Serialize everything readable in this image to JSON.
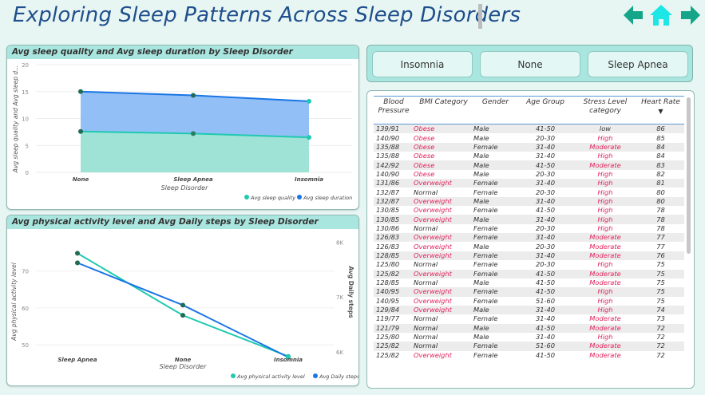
{
  "page_title": "Exploring Sleep Patterns Across Sleep Disorders",
  "nav": {
    "back_icon": "arrow-left-icon",
    "home_icon": "home-icon",
    "forward_icon": "arrow-right-icon",
    "color": "#15a68a"
  },
  "slicer": {
    "options": [
      "Insomnia",
      "None",
      "Sleep Apnea"
    ]
  },
  "chart1": {
    "title": "Avg sleep quality and Avg sleep duration by Sleep Disorder",
    "ylabel": "Avg sleep quality and Avg sleep d...",
    "xlabel": "Sleep Disorder",
    "y_ticks": [
      "0",
      "5",
      "10",
      "15",
      "20"
    ],
    "legend": [
      "Avg sleep quality",
      "Avg sleep duration"
    ]
  },
  "chart2": {
    "title": "Avg physical activity level and Avg Daily steps by Sleep Disorder",
    "ylabel": "Avg physical activity level",
    "ylabel2": "Avg Daily steps",
    "xlabel": "Sleep Disorder",
    "y_ticks": [
      "50",
      "60",
      "70"
    ],
    "y2_ticks": [
      "6K",
      "7K",
      "8K"
    ],
    "legend": [
      "Avg physical activity level",
      "Avg Daily steps"
    ]
  },
  "chart_data": [
    {
      "type": "area",
      "title": "Avg sleep quality and Avg sleep duration by Sleep Disorder",
      "categories": [
        "None",
        "Sleep Apnea",
        "Insomnia"
      ],
      "series": [
        {
          "name": "Avg sleep quality",
          "values": [
            7.6,
            7.2,
            6.5
          ],
          "color": "#20c9b0"
        },
        {
          "name": "Avg sleep duration",
          "values": [
            15.0,
            14.3,
            13.2
          ],
          "color": "#1a75e6"
        }
      ],
      "ylim": [
        0,
        20
      ],
      "xlabel": "Sleep Disorder",
      "ylabel": "Avg sleep quality and Avg sleep d...",
      "legend": "bottom-right"
    },
    {
      "type": "line",
      "title": "Avg physical activity level and Avg Daily steps by Sleep Disorder",
      "categories": [
        "Sleep Apnea",
        "None",
        "Insomnia"
      ],
      "series": [
        {
          "name": "Avg physical activity level",
          "values": [
            74.8,
            58.0,
            46.9
          ],
          "axis": "left",
          "color": "#20c9b0"
        },
        {
          "name": "Avg Daily steps",
          "values": [
            7620,
            6850,
            5900
          ],
          "axis": "right",
          "color": "#1a75e6"
        }
      ],
      "ylim": [
        44,
        82
      ],
      "y2lim": [
        5720,
        8280
      ],
      "xlabel": "Sleep Disorder",
      "ylabel": "Avg physical activity level",
      "y2label": "Avg Daily steps",
      "legend": "bottom-right"
    }
  ],
  "table": {
    "columns": [
      "Blood Pressure",
      "BMI Category",
      "Gender",
      "Age Group",
      "Stress Level category",
      "Heart Rate"
    ],
    "sort_indicator": "▼",
    "rows": [
      [
        "139/91",
        "Obese",
        "Male",
        "41-50",
        "low",
        "86"
      ],
      [
        "140/90",
        "Obese",
        "Male",
        "20-30",
        "High",
        "85"
      ],
      [
        "135/88",
        "Obese",
        "Female",
        "31-40",
        "Moderate",
        "84"
      ],
      [
        "135/88",
        "Obese",
        "Male",
        "31-40",
        "High",
        "84"
      ],
      [
        "142/92",
        "Obese",
        "Male",
        "41-50",
        "Moderate",
        "83"
      ],
      [
        "140/90",
        "Obese",
        "Male",
        "20-30",
        "High",
        "82"
      ],
      [
        "131/86",
        "Overweight",
        "Female",
        "31-40",
        "High",
        "81"
      ],
      [
        "132/87",
        "Normal",
        "Female",
        "20-30",
        "High",
        "80"
      ],
      [
        "132/87",
        "Overweight",
        "Male",
        "31-40",
        "High",
        "80"
      ],
      [
        "130/85",
        "Overweight",
        "Female",
        "41-50",
        "High",
        "78"
      ],
      [
        "130/85",
        "Overweight",
        "Male",
        "31-40",
        "High",
        "78"
      ],
      [
        "130/86",
        "Normal",
        "Female",
        "20-30",
        "High",
        "78"
      ],
      [
        "126/83",
        "Overweight",
        "Female",
        "31-40",
        "Moderate",
        "77"
      ],
      [
        "126/83",
        "Overweight",
        "Male",
        "20-30",
        "Moderate",
        "77"
      ],
      [
        "128/85",
        "Overweight",
        "Female",
        "31-40",
        "Moderate",
        "76"
      ],
      [
        "125/80",
        "Normal",
        "Female",
        "20-30",
        "High",
        "75"
      ],
      [
        "125/82",
        "Overweight",
        "Female",
        "41-50",
        "Moderate",
        "75"
      ],
      [
        "128/85",
        "Normal",
        "Male",
        "41-50",
        "Moderate",
        "75"
      ],
      [
        "140/95",
        "Overweight",
        "Female",
        "41-50",
        "High",
        "75"
      ],
      [
        "140/95",
        "Overweight",
        "Female",
        "51-60",
        "High",
        "75"
      ],
      [
        "129/84",
        "Overweight",
        "Male",
        "31-40",
        "High",
        "74"
      ],
      [
        "119/77",
        "Normal",
        "Female",
        "31-40",
        "Moderate",
        "73"
      ],
      [
        "121/79",
        "Normal",
        "Male",
        "41-50",
        "Moderate",
        "72"
      ],
      [
        "125/80",
        "Normal",
        "Male",
        "31-40",
        "High",
        "72"
      ],
      [
        "125/82",
        "Normal",
        "Female",
        "51-60",
        "Moderate",
        "72"
      ],
      [
        "125/82",
        "Overweight",
        "Female",
        "41-50",
        "Moderate",
        "72"
      ]
    ]
  },
  "colors": {
    "title": "#1f4e8c",
    "header_bg": "#a9e6df",
    "red": "#e0245e",
    "teal": "#20c9b0",
    "blue": "#1a75e6"
  }
}
